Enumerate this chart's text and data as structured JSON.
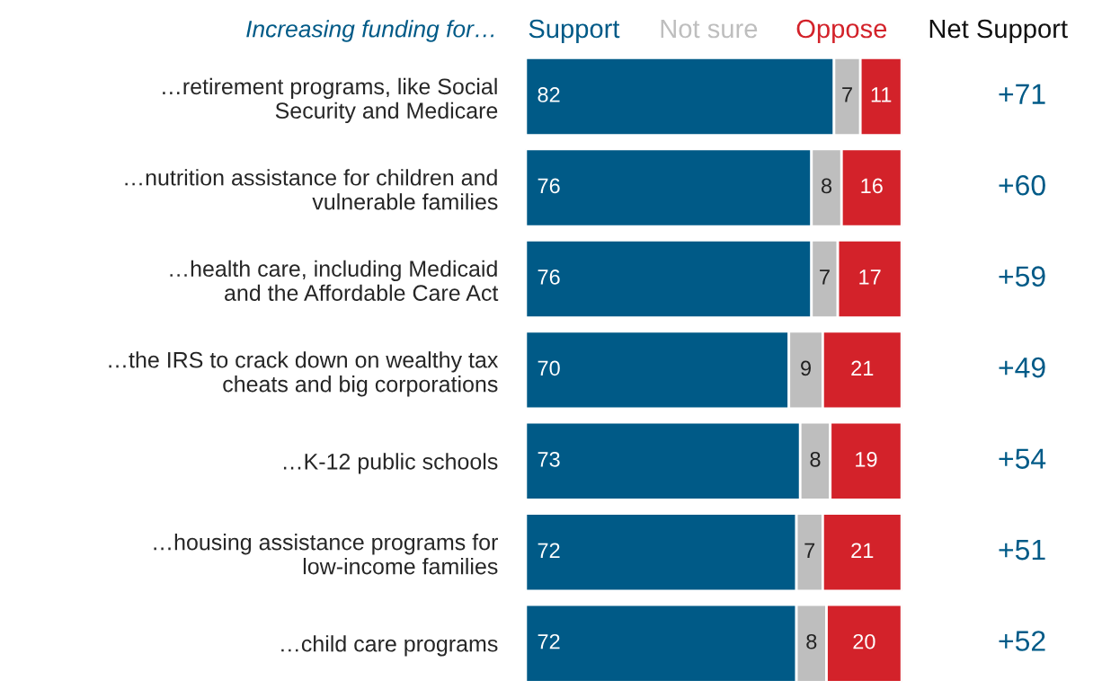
{
  "chart_data": {
    "type": "bar",
    "orientation": "horizontal",
    "stacked": true,
    "title": "Increasing funding for…",
    "categories": [
      "…retirement programs, like Social\nSecurity and Medicare",
      "…nutrition assistance for children and\nvulnerable families",
      "…health care, including Medicaid\nand the Affordable Care Act",
      "…the IRS to crack down on wealthy tax\ncheats and big corporations",
      "…K-12 public schools",
      "…housing assistance programs for\nlow-income families",
      "…child care programs"
    ],
    "series": [
      {
        "name": "Support",
        "color": "#005a87",
        "values": [
          82,
          76,
          76,
          70,
          73,
          72,
          72
        ]
      },
      {
        "name": "Not sure",
        "color": "#bebebe",
        "values": [
          7,
          8,
          7,
          9,
          8,
          7,
          8
        ]
      },
      {
        "name": "Oppose",
        "color": "#d3222a",
        "values": [
          11,
          16,
          17,
          21,
          19,
          21,
          20
        ]
      }
    ],
    "xlim": [
      0,
      100
    ],
    "tick_labels": "y",
    "data_labels": true,
    "legend": "top",
    "grid": false,
    "annotations": [
      "Net Support",
      "+71",
      "+60",
      "+59",
      "+49",
      "+54",
      "+51",
      "+52"
    ]
  }
}
